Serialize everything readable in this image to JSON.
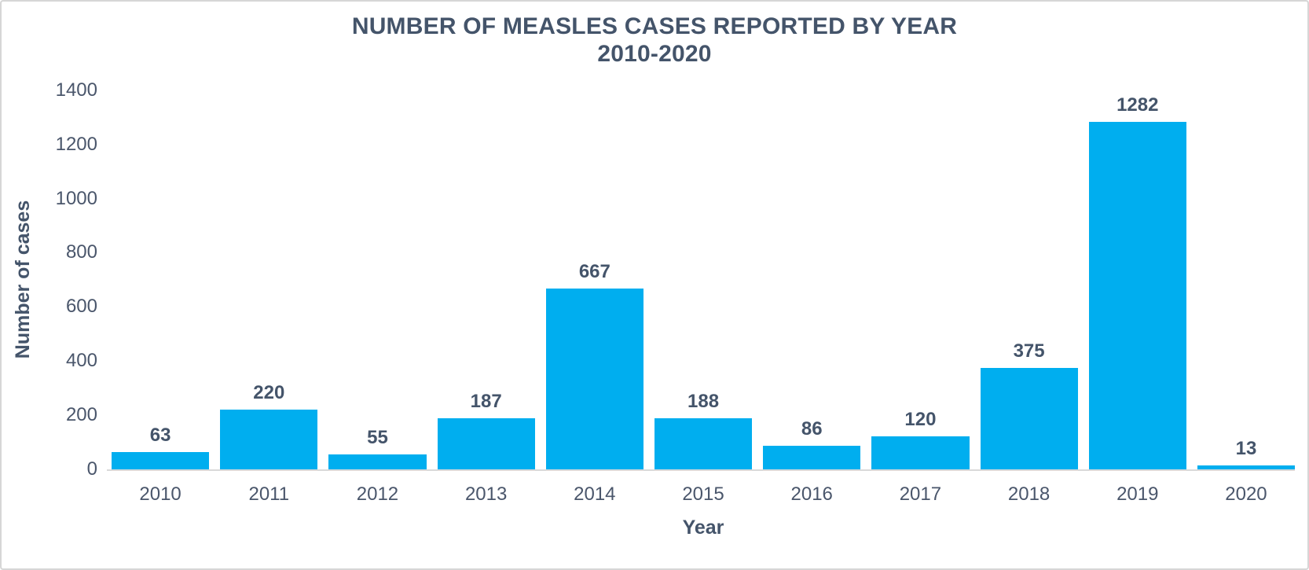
{
  "chart_data": {
    "type": "bar",
    "title": "NUMBER OF MEASLES CASES REPORTED BY YEAR",
    "subtitle": "2010-2020",
    "categories": [
      "2010",
      "2011",
      "2012",
      "2013",
      "2014",
      "2015",
      "2016",
      "2017",
      "2018",
      "2019",
      "2020"
    ],
    "values": [
      63,
      220,
      55,
      187,
      667,
      188,
      86,
      120,
      375,
      1282,
      13
    ],
    "xlabel": "Year",
    "ylabel": "Number of cases",
    "ylim": [
      0,
      1400
    ],
    "yticks": [
      0,
      200,
      400,
      600,
      800,
      1000,
      1200,
      1400
    ],
    "grid": false,
    "legend_position": "none",
    "data_labels": true,
    "colors": {
      "bar": "#00AEEF",
      "text": "#44546A",
      "tick_text": "#4a566b",
      "axis_line": "#d9d9d9",
      "background": "#ffffff",
      "frame_border": "#d6d6d6"
    }
  }
}
